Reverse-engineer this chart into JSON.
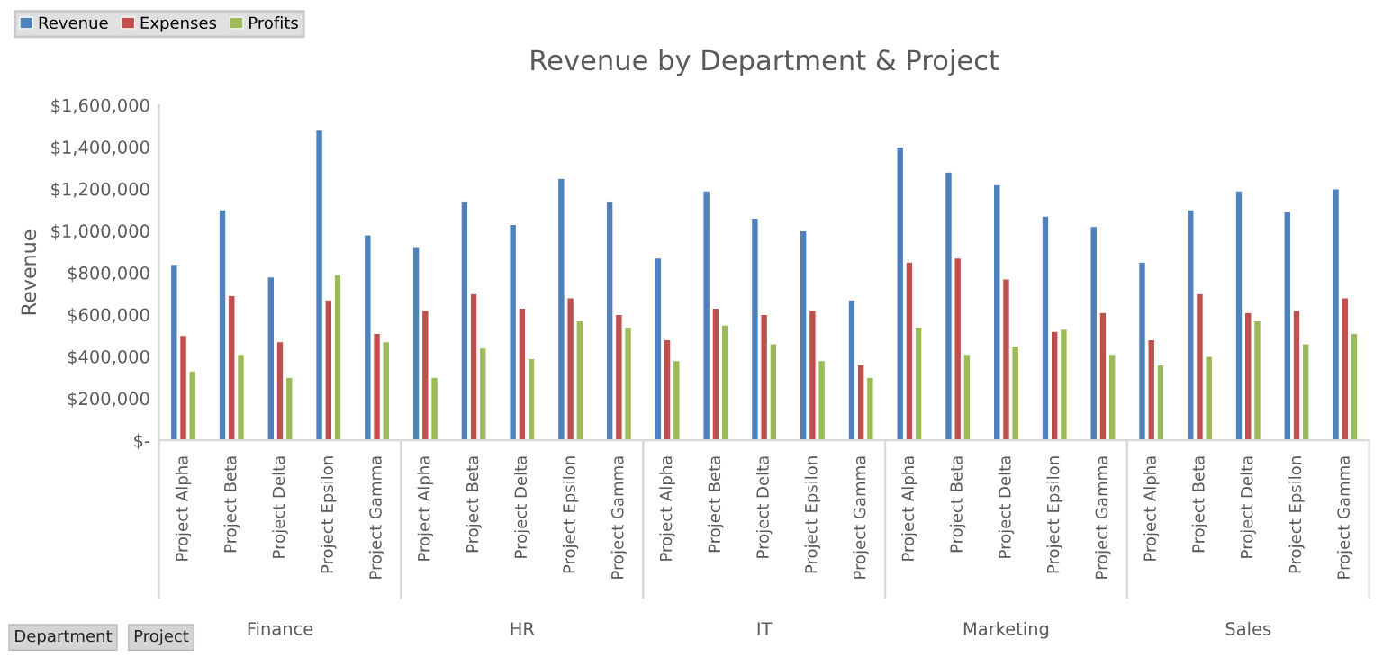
{
  "chart_data": {
    "type": "bar",
    "title": "Revenue by Department & Project",
    "ylabel": "Revenue",
    "categories": [
      "Project Alpha",
      "Project Beta",
      "Project Delta",
      "Project Epsilon",
      "Project Gamma",
      "Project Alpha",
      "Project Beta",
      "Project Delta",
      "Project Epsilon",
      "Project Gamma",
      "Project Alpha",
      "Project Beta",
      "Project Delta",
      "Project Epsilon",
      "Project Gamma",
      "Project Alpha",
      "Project Beta",
      "Project Delta",
      "Project Epsilon",
      "Project Gamma",
      "Project Alpha",
      "Project Beta",
      "Project Delta",
      "Project Epsilon",
      "Project Gamma"
    ],
    "series": [
      {
        "name": "Revenue",
        "color": "#4f81bd",
        "values": [
          840000,
          1100000,
          780000,
          1480000,
          980000,
          920000,
          1140000,
          1030000,
          1250000,
          1140000,
          870000,
          1190000,
          1060000,
          1000000,
          670000,
          1400000,
          1280000,
          1220000,
          1070000,
          1020000,
          850000,
          1100000,
          1190000,
          1090000,
          1200000
        ]
      },
      {
        "name": "Expenses",
        "color": "#c0504d",
        "values": [
          500000,
          690000,
          470000,
          670000,
          510000,
          620000,
          700000,
          630000,
          680000,
          600000,
          480000,
          630000,
          600000,
          620000,
          360000,
          850000,
          870000,
          770000,
          520000,
          610000,
          480000,
          700000,
          610000,
          620000,
          680000
        ]
      },
      {
        "name": "Profits",
        "color": "#9bbb59",
        "values": [
          330000,
          410000,
          300000,
          790000,
          470000,
          300000,
          440000,
          390000,
          570000,
          540000,
          380000,
          550000,
          460000,
          380000,
          300000,
          540000,
          410000,
          450000,
          530000,
          410000,
          360000,
          400000,
          570000,
          460000,
          510000
        ]
      }
    ],
    "ylim": [
      0,
      1600000
    ],
    "yticks": [
      {
        "value": 0,
        "label": "$-"
      },
      {
        "value": 200000,
        "label": "$200,000"
      },
      {
        "value": 400000,
        "label": "$400,000"
      },
      {
        "value": 600000,
        "label": "$600,000"
      },
      {
        "value": 800000,
        "label": "$800,000"
      },
      {
        "value": 1000000,
        "label": "$1,000,000"
      },
      {
        "value": 1200000,
        "label": "$1,200,000"
      },
      {
        "value": 1400000,
        "label": "$1,400,000"
      },
      {
        "value": 1600000,
        "label": "$1,600,000"
      }
    ],
    "grid": false,
    "legend": "top left",
    "annotations": [
      "Finance",
      "HR",
      "IT",
      "Marketing",
      "Sales",
      "Department",
      "Project"
    ]
  }
}
